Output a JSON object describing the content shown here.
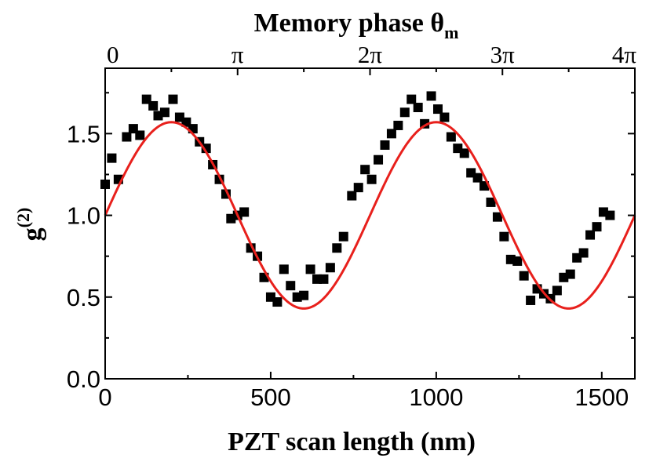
{
  "chart_data": {
    "type": "scatter",
    "xlabel": "PZT scan length (nm)",
    "xlim": [
      0,
      1600
    ],
    "xticks": [
      0,
      500,
      1000,
      1500
    ],
    "x_tick_labels": [
      "0",
      "500",
      "1000",
      "1500"
    ],
    "ylabel": "g",
    "ylabel_superscript": "(2)",
    "ylim": [
      0,
      1.9
    ],
    "yticks": [
      0.0,
      0.5,
      1.0,
      1.5
    ],
    "y_tick_labels": [
      "0.0",
      "0.5",
      "1.0",
      "1.5"
    ],
    "top_axis": {
      "label": "Memory phase θ",
      "label_subscript": "m",
      "tick_positions": [
        0,
        400,
        800,
        1200,
        1600
      ],
      "tick_labels": [
        "0",
        "π",
        "2π",
        "3π",
        "4π"
      ]
    },
    "grid": false,
    "series": [
      {
        "kind": "markers",
        "color": "#000000",
        "points": [
          [
            0,
            1.19
          ],
          [
            20,
            1.35
          ],
          [
            40,
            1.22
          ],
          [
            65,
            1.48
          ],
          [
            85,
            1.53
          ],
          [
            105,
            1.49
          ],
          [
            125,
            1.71
          ],
          [
            145,
            1.67
          ],
          [
            160,
            1.61
          ],
          [
            180,
            1.63
          ],
          [
            205,
            1.71
          ],
          [
            225,
            1.6
          ],
          [
            245,
            1.57
          ],
          [
            265,
            1.53
          ],
          [
            285,
            1.45
          ],
          [
            305,
            1.41
          ],
          [
            325,
            1.31
          ],
          [
            345,
            1.22
          ],
          [
            365,
            1.13
          ],
          [
            380,
            0.98
          ],
          [
            400,
            1.0
          ],
          [
            420,
            1.02
          ],
          [
            440,
            0.8
          ],
          [
            460,
            0.75
          ],
          [
            480,
            0.62
          ],
          [
            500,
            0.5
          ],
          [
            520,
            0.47
          ],
          [
            540,
            0.67
          ],
          [
            560,
            0.57
          ],
          [
            580,
            0.5
          ],
          [
            600,
            0.51
          ],
          [
            620,
            0.67
          ],
          [
            640,
            0.61
          ],
          [
            660,
            0.61
          ],
          [
            680,
            0.68
          ],
          [
            700,
            0.8
          ],
          [
            720,
            0.87
          ],
          [
            745,
            1.12
          ],
          [
            765,
            1.17
          ],
          [
            785,
            1.28
          ],
          [
            805,
            1.22
          ],
          [
            825,
            1.34
          ],
          [
            845,
            1.43
          ],
          [
            865,
            1.5
          ],
          [
            885,
            1.55
          ],
          [
            905,
            1.63
          ],
          [
            925,
            1.71
          ],
          [
            945,
            1.66
          ],
          [
            965,
            1.56
          ],
          [
            985,
            1.73
          ],
          [
            1005,
            1.65
          ],
          [
            1025,
            1.6
          ],
          [
            1045,
            1.48
          ],
          [
            1065,
            1.41
          ],
          [
            1085,
            1.38
          ],
          [
            1105,
            1.26
          ],
          [
            1125,
            1.23
          ],
          [
            1145,
            1.18
          ],
          [
            1165,
            1.08
          ],
          [
            1185,
            0.99
          ],
          [
            1205,
            0.87
          ],
          [
            1225,
            0.73
          ],
          [
            1245,
            0.72
          ],
          [
            1265,
            0.63
          ],
          [
            1285,
            0.48
          ],
          [
            1305,
            0.55
          ],
          [
            1325,
            0.52
          ],
          [
            1345,
            0.49
          ],
          [
            1365,
            0.54
          ],
          [
            1385,
            0.62
          ],
          [
            1405,
            0.64
          ],
          [
            1425,
            0.74
          ],
          [
            1445,
            0.77
          ],
          [
            1465,
            0.88
          ],
          [
            1485,
            0.93
          ],
          [
            1505,
            1.02
          ],
          [
            1525,
            1.0
          ]
        ]
      },
      {
        "kind": "fit",
        "color": "#e8201c",
        "model": "1 + 0.57*sin(2*pi*x/800)"
      }
    ]
  }
}
